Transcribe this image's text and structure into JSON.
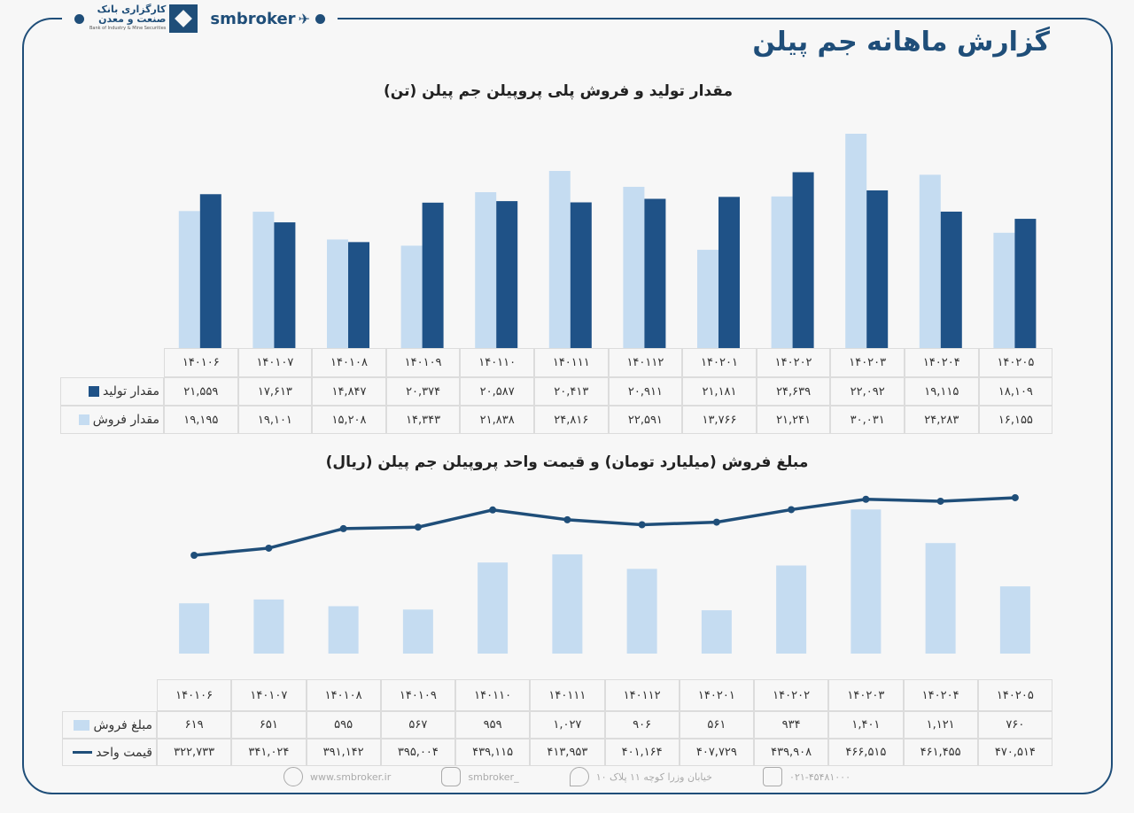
{
  "header": {
    "bank_name_line1": "کارگزاری بانک",
    "bank_name_line2": "صنعت و معدن",
    "bank_name_en": "Bank of Industry & Mine Securities",
    "brand": "smbroker"
  },
  "title": "گزارش ماهانه جم پیلن",
  "colors": {
    "production": "#1f5287",
    "sales": "#c5dcf1",
    "line": "#1f4e79",
    "frame": "#1f4e79"
  },
  "chart_data": [
    {
      "type": "bar",
      "title": "مقدار تولید و فروش پلی پروپیلن جم پیلن (تن)",
      "categories": [
        "۱۴۰۱۰۶",
        "۱۴۰۱۰۷",
        "۱۴۰۱۰۸",
        "۱۴۰۱۰۹",
        "۱۴۰۱۱۰",
        "۱۴۰۱۱۱",
        "۱۴۰۱۱۲",
        "۱۴۰۲۰۱",
        "۱۴۰۲۰۲",
        "۱۴۰۲۰۳",
        "۱۴۰۲۰۴",
        "۱۴۰۲۰۵"
      ],
      "series": [
        {
          "name": "مقدار تولید",
          "values": [
            21559,
            17613,
            14847,
            20374,
            20587,
            20413,
            20911,
            21181,
            24639,
            22092,
            19115,
            18109
          ],
          "labels": [
            "۲۱,۵۵۹",
            "۱۷,۶۱۳",
            "۱۴,۸۴۷",
            "۲۰,۳۷۴",
            "۲۰,۵۸۷",
            "۲۰,۴۱۳",
            "۲۰,۹۱۱",
            "۲۱,۱۸۱",
            "۲۴,۶۳۹",
            "۲۲,۰۹۲",
            "۱۹,۱۱۵",
            "۱۸,۱۰۹"
          ]
        },
        {
          "name": "مقدار فروش",
          "values": [
            19195,
            19101,
            15208,
            14343,
            21838,
            24816,
            22591,
            13766,
            21241,
            30031,
            24283,
            16155
          ],
          "labels": [
            "۱۹,۱۹۵",
            "۱۹,۱۰۱",
            "۱۵,۲۰۸",
            "۱۴,۳۴۳",
            "۲۱,۸۳۸",
            "۲۴,۸۱۶",
            "۲۲,۵۹۱",
            "۱۳,۷۶۶",
            "۲۱,۲۴۱",
            "۳۰,۰۳۱",
            "۲۴,۲۸۳",
            "۱۶,۱۵۵"
          ]
        }
      ],
      "ylim": [
        0,
        30031
      ],
      "grid": false,
      "legend": "table"
    },
    {
      "type": "bar+line",
      "title": "مبلغ فروش (میلیارد تومان) و قیمت واحد پروپیلن جم پیلن (ریال)",
      "categories": [
        "۱۴۰۱۰۶",
        "۱۴۰۱۰۷",
        "۱۴۰۱۰۸",
        "۱۴۰۱۰۹",
        "۱۴۰۱۱۰",
        "۱۴۰۱۱۱",
        "۱۴۰۱۱۲",
        "۱۴۰۲۰۱",
        "۱۴۰۲۰۲",
        "۱۴۰۲۰۳",
        "۱۴۰۲۰۴",
        "۱۴۰۲۰۵"
      ],
      "series": [
        {
          "name": "مبلغ فروش",
          "type": "bar",
          "values": [
            619,
            651,
            595,
            567,
            959,
            1027,
            906,
            561,
            934,
            1401,
            1121,
            760
          ],
          "labels": [
            "۶۱۹",
            "۶۵۱",
            "۵۹۵",
            "۵۶۷",
            "۹۵۹",
            "۱,۰۲۷",
            "۹۰۶",
            "۵۶۱",
            "۹۳۴",
            "۱,۴۰۱",
            "۱,۱۲۱",
            "۷۶۰"
          ]
        },
        {
          "name": "قیمت واحد",
          "type": "line",
          "values": [
            322733,
            341024,
            391142,
            395004,
            439115,
            413953,
            401164,
            407729,
            439908,
            466515,
            461455,
            470514
          ],
          "labels": [
            "۳۲۲,۷۳۳",
            "۳۴۱,۰۲۴",
            "۳۹۱,۱۴۲",
            "۳۹۵,۰۰۴",
            "۴۳۹,۱۱۵",
            "۴۱۳,۹۵۳",
            "۴۰۱,۱۶۴",
            "۴۰۷,۷۲۹",
            "۴۳۹,۹۰۸",
            "۴۶۶,۵۱۵",
            "۴۶۱,۴۵۵",
            "۴۷۰,۵۱۴"
          ]
        }
      ],
      "grid": false,
      "legend": "table"
    }
  ],
  "footer": {
    "website": "www.smbroker.ir",
    "instagram": "smbroker_",
    "address": "خیابان وزرا کوچه ۱۱ پلاک ۱۰",
    "phone": "۰۲۱-۴۵۴۸۱۰۰۰"
  }
}
